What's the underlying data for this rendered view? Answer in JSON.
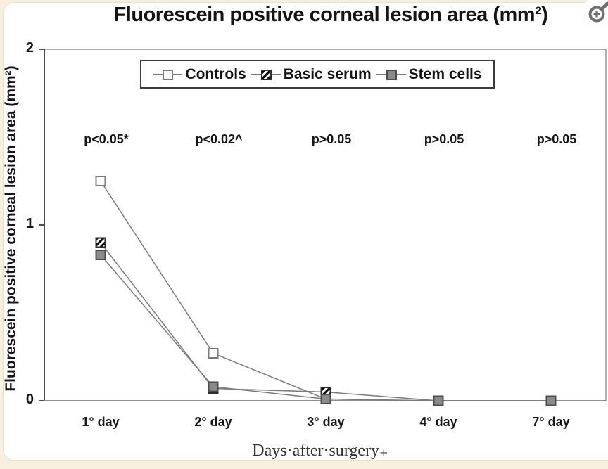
{
  "viewer": {
    "zoom_button_icon": "magnifier-plus"
  },
  "chart_data": {
    "type": "line",
    "title": "Fluorescein positive corneal lesion area (mm²)",
    "ylabel": "Fluorescein positive corneal lesion area (mm²)",
    "xlabel": "Days·after·surgery₊",
    "categories": [
      "1° day",
      "2° day",
      "3° day",
      "4° day",
      "7° day"
    ],
    "series": [
      {
        "name": "Controls",
        "marker": "open",
        "values": [
          1.25,
          0.27,
          0.01,
          0,
          0
        ]
      },
      {
        "name": "Basic serum",
        "marker": "hatched",
        "values": [
          0.9,
          0.07,
          0.05,
          0,
          0
        ]
      },
      {
        "name": "Stem cells",
        "marker": "filled",
        "values": [
          0.83,
          0.08,
          0.01,
          0,
          0
        ]
      }
    ],
    "annotations": [
      "p<0.05*",
      "p<0.02^",
      "p>0.05",
      "p>0.05",
      "p>0.05"
    ],
    "yticks": [
      0,
      1,
      2
    ],
    "ylim": [
      0,
      2
    ],
    "grid": false,
    "legend_position": "top-center",
    "colors": {
      "line": "#7b7b7b",
      "axis_dark": "#4c4c4c",
      "axis_light": "#8f8f8f",
      "stem_cells_fill": "#8a8a8a",
      "background": "#ffffff",
      "page_background": "#f8efdf"
    }
  }
}
